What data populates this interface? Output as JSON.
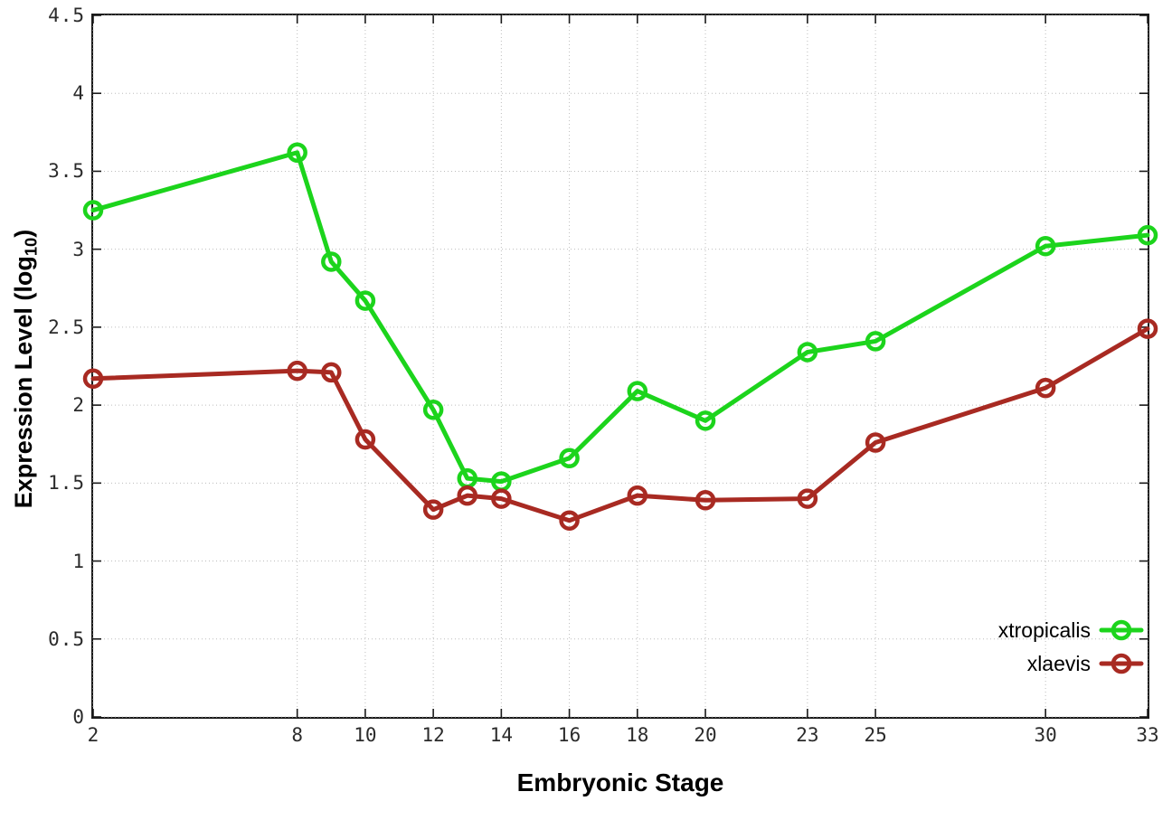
{
  "chart_data": {
    "type": "line",
    "title": "",
    "xlabel": "Embryonic Stage",
    "ylabel": {
      "text": "Expression Level (log",
      "sub": "10",
      "suffix": ")"
    },
    "xlim": [
      2,
      33
    ],
    "ylim": [
      0,
      4.5
    ],
    "grid": true,
    "legend_position": "bottom-right",
    "x": [
      2,
      8,
      9,
      10,
      12,
      13,
      14,
      16,
      18,
      20,
      23,
      25,
      30,
      33
    ],
    "x_ticks": [
      {
        "value": 2,
        "label": "2"
      },
      {
        "value": 8,
        "label": "8"
      },
      {
        "value": 10,
        "label": "10"
      },
      {
        "value": 12,
        "label": "12"
      },
      {
        "value": 14,
        "label": "14"
      },
      {
        "value": 16,
        "label": "16"
      },
      {
        "value": 18,
        "label": "18"
      },
      {
        "value": 20,
        "label": "20"
      },
      {
        "value": 23,
        "label": "23"
      },
      {
        "value": 25,
        "label": "25"
      },
      {
        "value": 30,
        "label": "30"
      },
      {
        "value": 33,
        "label": "33"
      }
    ],
    "y_ticks": [
      {
        "value": 0,
        "label": "0"
      },
      {
        "value": 0.5,
        "label": "0.5"
      },
      {
        "value": 1,
        "label": "1"
      },
      {
        "value": 1.5,
        "label": "1.5"
      },
      {
        "value": 2,
        "label": "2"
      },
      {
        "value": 2.5,
        "label": "2.5"
      },
      {
        "value": 3,
        "label": "3"
      },
      {
        "value": 3.5,
        "label": "3.5"
      },
      {
        "value": 4,
        "label": "4"
      },
      {
        "value": 4.5,
        "label": "4.5"
      }
    ],
    "series": [
      {
        "name": "xtropicalis",
        "color": "#1cd41c",
        "values": [
          3.25,
          3.62,
          2.92,
          2.67,
          1.97,
          1.53,
          1.51,
          1.66,
          2.09,
          1.9,
          2.34,
          2.41,
          3.02,
          3.09
        ]
      },
      {
        "name": "xlaevis",
        "color": "#a82a22",
        "values": [
          2.17,
          2.22,
          2.21,
          1.78,
          1.33,
          1.42,
          1.4,
          1.26,
          1.42,
          1.39,
          1.4,
          1.76,
          2.11,
          2.49
        ]
      }
    ],
    "colors": {
      "grid": "#bdbdbd",
      "axis": "#1a1a1a",
      "tick_text": "#2b2b2b"
    }
  }
}
